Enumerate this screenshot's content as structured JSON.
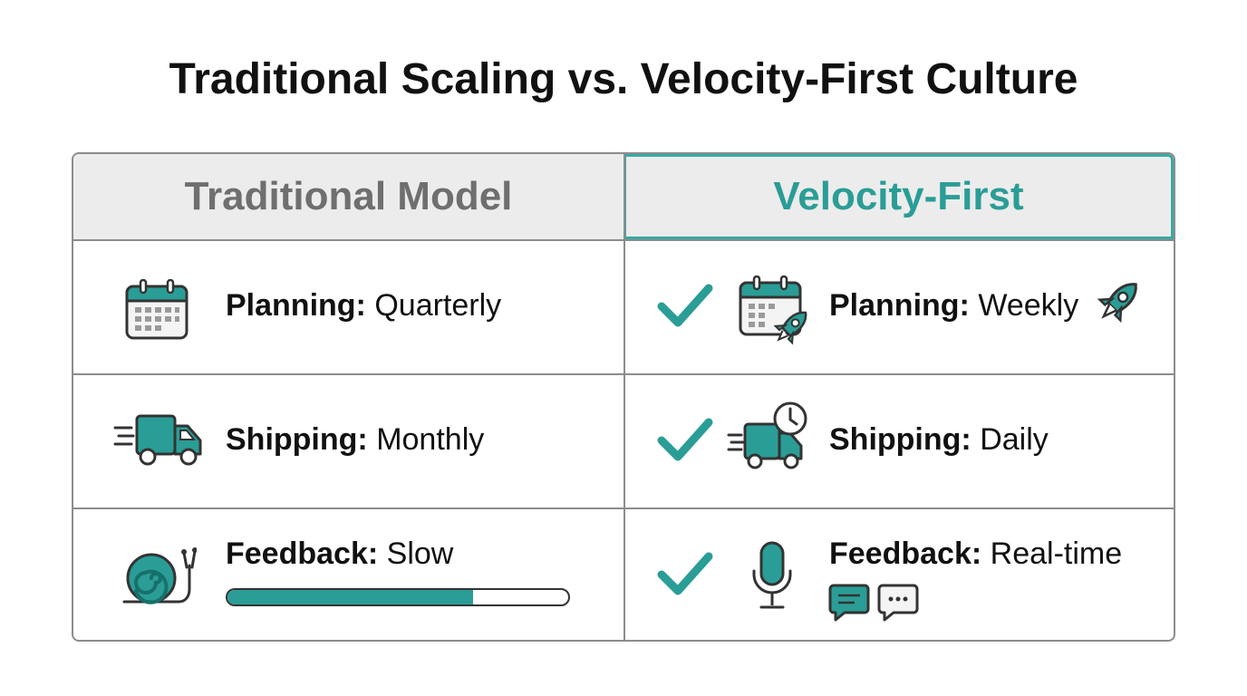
{
  "title": "Traditional Scaling vs. Velocity-First Culture",
  "colors": {
    "accent": "#2a9d96",
    "header_bg": "#ececec",
    "border": "#8c8c8c",
    "muted_header": "#6f6f6f"
  },
  "columns": [
    {
      "header": "Traditional Model",
      "rows": [
        {
          "label": "Planning:",
          "value": "Quarterly",
          "icons": [
            "calendar-icon"
          ]
        },
        {
          "label": "Shipping:",
          "value": "Monthly",
          "icons": [
            "delivery-truck-icon"
          ]
        },
        {
          "label": "Feedback:",
          "value": "Slow",
          "icons": [
            "snail-icon"
          ],
          "progress": 0.72
        }
      ]
    },
    {
      "header": "Velocity-First",
      "rows": [
        {
          "label": "Planning:",
          "value": "Weekly",
          "icons": [
            "checkmark-icon",
            "calendar-rocket-icon",
            "rocket-icon"
          ]
        },
        {
          "label": "Shipping:",
          "value": "Daily",
          "icons": [
            "checkmark-icon",
            "delivery-truck-clock-icon"
          ]
        },
        {
          "label": "Feedback:",
          "value": "Real-time",
          "icons": [
            "checkmark-icon",
            "microphone-icon",
            "chat-bubble-icon",
            "chat-dots-icon"
          ]
        }
      ]
    }
  ]
}
